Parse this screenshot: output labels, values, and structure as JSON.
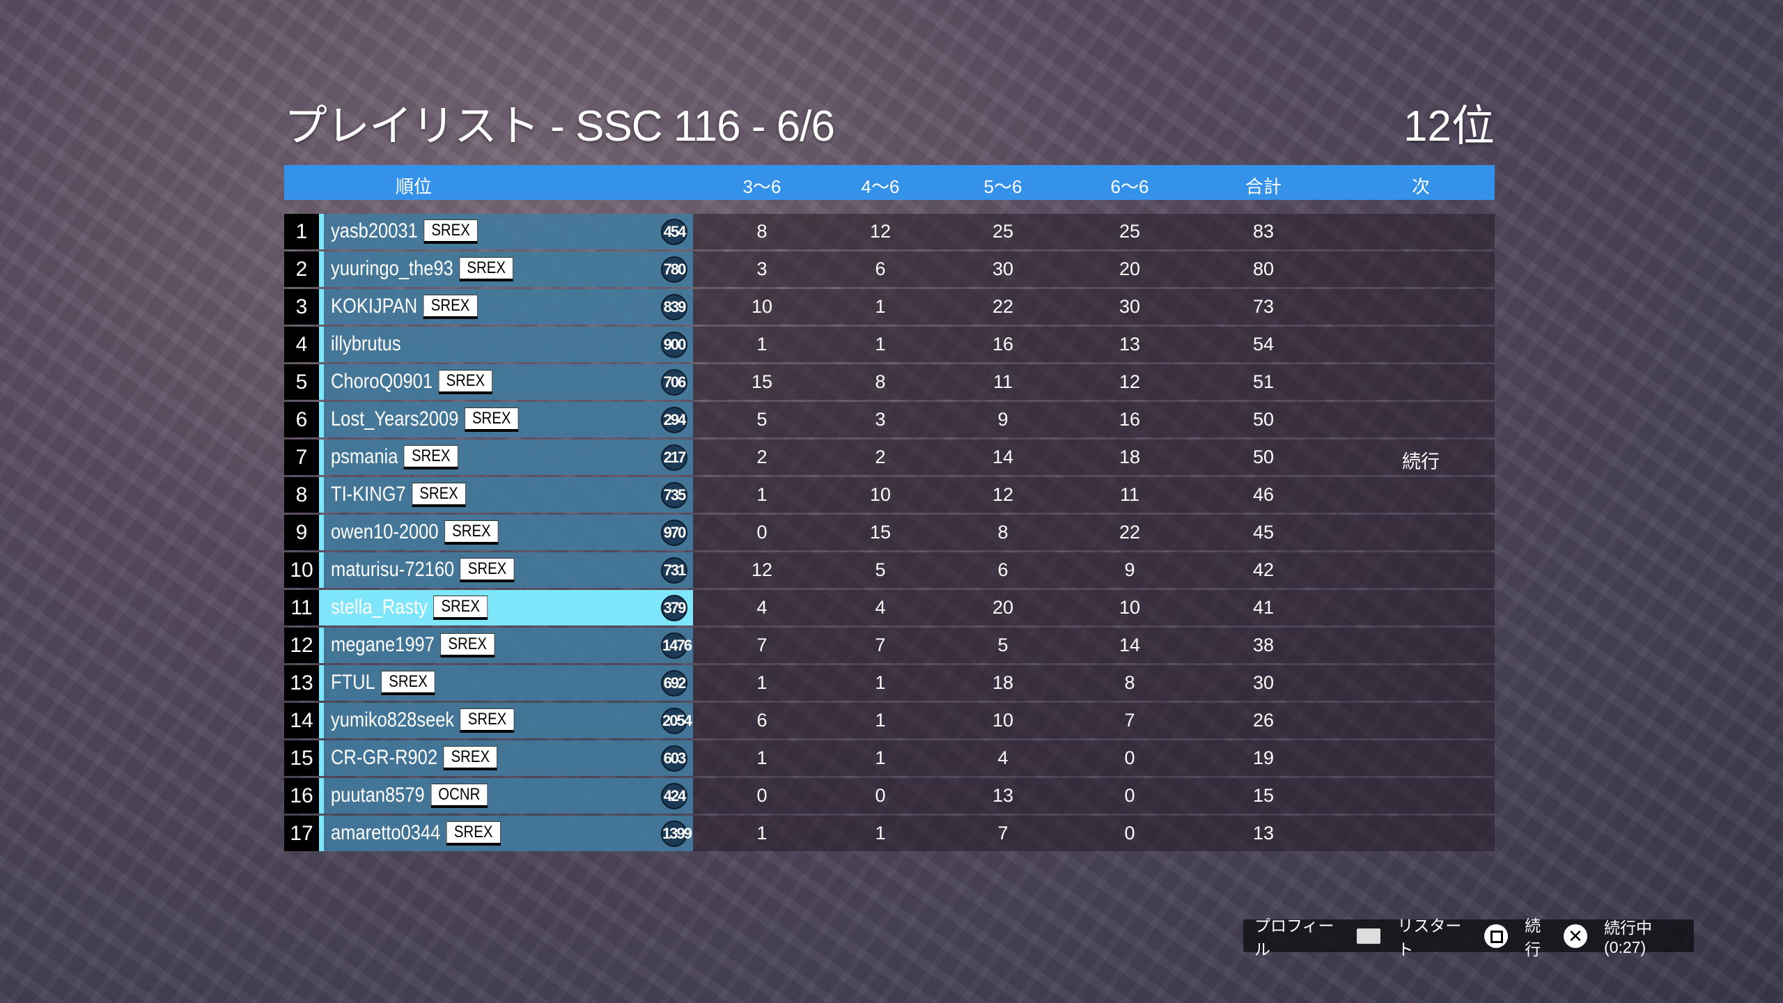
{
  "title": "プレイリスト - SSC 116 - 6/6",
  "placement": "12位",
  "columns": {
    "rank": "順位",
    "c1": "3～6",
    "c2": "4～6",
    "c3": "5～6",
    "c4": "6～6",
    "total": "合計",
    "next": "次"
  },
  "current_player_rank": 11,
  "rows": [
    {
      "rank": "1",
      "name": "yasb20031",
      "crew": "SREX",
      "level": "454",
      "c1": "8",
      "c2": "12",
      "c3": "25",
      "c4": "25",
      "total": "83",
      "next": ""
    },
    {
      "rank": "2",
      "name": "yuuringo_the93",
      "crew": "SREX",
      "level": "780",
      "c1": "3",
      "c2": "6",
      "c3": "30",
      "c4": "20",
      "total": "80",
      "next": ""
    },
    {
      "rank": "3",
      "name": "KOKIJPAN",
      "crew": "SREX",
      "level": "839",
      "c1": "10",
      "c2": "1",
      "c3": "22",
      "c4": "30",
      "total": "73",
      "next": ""
    },
    {
      "rank": "4",
      "name": "illybrutus",
      "crew": "",
      "level": "900",
      "c1": "1",
      "c2": "1",
      "c3": "16",
      "c4": "13",
      "total": "54",
      "next": ""
    },
    {
      "rank": "5",
      "name": "ChoroQ0901",
      "crew": "SREX",
      "level": "706",
      "c1": "15",
      "c2": "8",
      "c3": "11",
      "c4": "12",
      "total": "51",
      "next": ""
    },
    {
      "rank": "6",
      "name": "Lost_Years2009",
      "crew": "SREX",
      "level": "294",
      "c1": "5",
      "c2": "3",
      "c3": "9",
      "c4": "16",
      "total": "50",
      "next": ""
    },
    {
      "rank": "7",
      "name": "psmania",
      "crew": "SREX",
      "level": "217",
      "c1": "2",
      "c2": "2",
      "c3": "14",
      "c4": "18",
      "total": "50",
      "next": "続行"
    },
    {
      "rank": "8",
      "name": "TI-KING7",
      "crew": "SREX",
      "level": "735",
      "c1": "1",
      "c2": "10",
      "c3": "12",
      "c4": "11",
      "total": "46",
      "next": ""
    },
    {
      "rank": "9",
      "name": "owen10-2000",
      "crew": "SREX",
      "level": "970",
      "c1": "0",
      "c2": "15",
      "c3": "8",
      "c4": "22",
      "total": "45",
      "next": ""
    },
    {
      "rank": "10",
      "name": "maturisu-72160",
      "crew": "SREX",
      "level": "731",
      "c1": "12",
      "c2": "5",
      "c3": "6",
      "c4": "9",
      "total": "42",
      "next": ""
    },
    {
      "rank": "11",
      "name": "stella_Rasty",
      "crew": "SREX",
      "level": "379",
      "c1": "4",
      "c2": "4",
      "c3": "20",
      "c4": "10",
      "total": "41",
      "next": ""
    },
    {
      "rank": "12",
      "name": "megane1997",
      "crew": "SREX",
      "level": "1476",
      "c1": "7",
      "c2": "7",
      "c3": "5",
      "c4": "14",
      "total": "38",
      "next": ""
    },
    {
      "rank": "13",
      "name": "FTUL",
      "crew": "SREX",
      "level": "692",
      "c1": "1",
      "c2": "1",
      "c3": "18",
      "c4": "8",
      "total": "30",
      "next": ""
    },
    {
      "rank": "14",
      "name": "yumiko828seek",
      "crew": "SREX",
      "level": "2054",
      "c1": "6",
      "c2": "1",
      "c3": "10",
      "c4": "7",
      "total": "26",
      "next": ""
    },
    {
      "rank": "15",
      "name": "CR-GR-R902",
      "crew": "SREX",
      "level": "603",
      "c1": "1",
      "c2": "1",
      "c3": "4",
      "c4": "0",
      "total": "19",
      "next": ""
    },
    {
      "rank": "16",
      "name": "puutan8579",
      "crew": "OCNR",
      "level": "424",
      "c1": "0",
      "c2": "0",
      "c3": "13",
      "c4": "0",
      "total": "15",
      "next": ""
    },
    {
      "rank": "17",
      "name": "amaretto0344",
      "crew": "SREX",
      "level": "1399",
      "c1": "1",
      "c2": "1",
      "c3": "7",
      "c4": "0",
      "total": "13",
      "next": ""
    }
  ],
  "footer": {
    "profile": "プロフィール",
    "profile_icon": "touchpad-icon",
    "restart": "リスタート",
    "restart_icon": "square-button-icon",
    "continue": "続行",
    "continue_icon": "cross-button-icon",
    "countdown": "続行中(0:27)"
  },
  "colors": {
    "header": "#3592ea",
    "name_cell": "#468cb4",
    "highlight": "#7ee6fb"
  }
}
